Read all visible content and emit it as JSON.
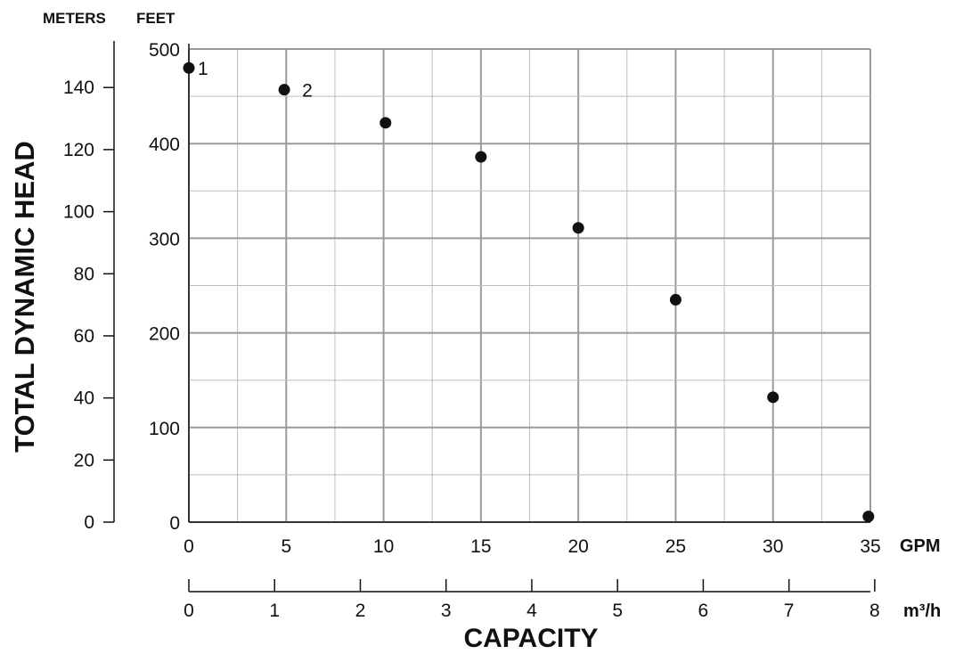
{
  "chart_data": {
    "type": "scatter",
    "title": "",
    "xlabel": "CAPACITY",
    "ylabel": "TOTAL DYNAMIC HEAD",
    "x_unit_primary": "GPM",
    "x_unit_secondary": "m³/h",
    "y_unit_primary": "FEET",
    "y_unit_secondary": "METERS",
    "xlim": [
      0,
      35
    ],
    "ylim": [
      0,
      500
    ],
    "x_ticks": [
      0,
      5,
      10,
      15,
      20,
      25,
      30,
      35
    ],
    "y_ticks": [
      0,
      100,
      200,
      300,
      400,
      500
    ],
    "m3h_ticks": [
      0,
      1,
      2,
      3,
      4,
      5,
      6,
      7,
      8
    ],
    "meters_ticks": [
      0,
      20,
      40,
      60,
      80,
      100,
      120,
      140
    ],
    "grid": true,
    "series": [
      {
        "x": [
          0,
          4.9,
          10.1,
          15.0,
          20.0,
          25.0,
          30.0,
          34.9
        ],
        "y": [
          480,
          457,
          422,
          386,
          311,
          235,
          132,
          6
        ]
      }
    ],
    "annotations": [
      {
        "text": "1",
        "x": 0,
        "y": 480
      },
      {
        "text": "2",
        "x": 4.9,
        "y": 457
      }
    ]
  }
}
